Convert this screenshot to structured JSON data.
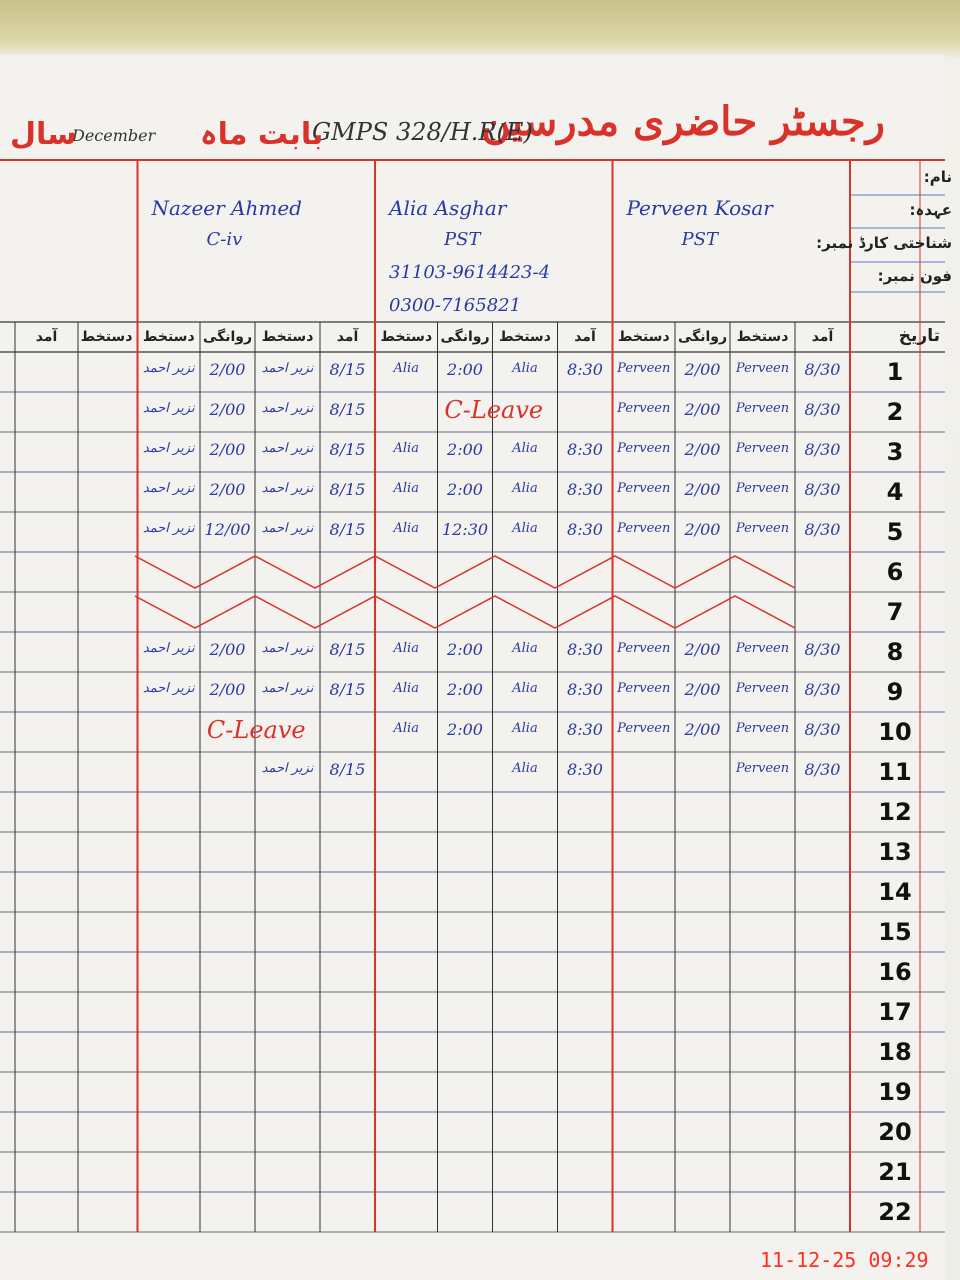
{
  "header": {
    "title": "رجسٹر حاضری مدرسین",
    "school": "GMPS 328/H.R(E)",
    "month_label": "بابت ماہ",
    "month": "December",
    "year_label": "سال"
  },
  "field_labels": [
    "نام:",
    "عہدہ:",
    "شناختی کارڈ نمبر:",
    "فون نمبر:"
  ],
  "date_label": "تاریخ",
  "teachers": [
    {
      "name": "Nazeer Ahmed",
      "designation": "C-iv"
    },
    {
      "name": "Alia Asghar",
      "designation": "PST",
      "cnic": "31103-9614423-4",
      "phone": "0300-7165821"
    },
    {
      "name": "Perveen Kosar",
      "designation": "PST"
    }
  ],
  "column_headers": [
    "آمد",
    "دستخط",
    "روانگی",
    "دستخط"
  ],
  "days": [
    1,
    2,
    3,
    4,
    5,
    6,
    7,
    8,
    9,
    10,
    11,
    12,
    13,
    14,
    15,
    16,
    17,
    18,
    19,
    20,
    21,
    22
  ],
  "crossed_days": [
    6,
    7
  ],
  "records": [
    {
      "day": 1,
      "teacher": 0,
      "cells": [
        "8/15",
        "نزیر احمد",
        "2/00",
        "نزیر احمد"
      ]
    },
    {
      "day": 1,
      "teacher": 1,
      "cells": [
        "8:30",
        "Alia",
        "2:00",
        "Alia"
      ]
    },
    {
      "day": 1,
      "teacher": 2,
      "cells": [
        "8/30",
        "Perveen",
        "2/00",
        "Perveen"
      ]
    },
    {
      "day": 2,
      "teacher": 0,
      "cells": [
        "8/15",
        "نزیر احمد",
        "2/00",
        "نزیر احمد"
      ]
    },
    {
      "day": 2,
      "teacher": 1,
      "leave": "C-Leave"
    },
    {
      "day": 2,
      "teacher": 2,
      "cells": [
        "8/30",
        "Perveen",
        "2/00",
        "Perveen"
      ]
    },
    {
      "day": 3,
      "teacher": 0,
      "cells": [
        "8/15",
        "نزیر احمد",
        "2/00",
        "نزیر احمد"
      ]
    },
    {
      "day": 3,
      "teacher": 1,
      "cells": [
        "8:30",
        "Alia",
        "2:00",
        "Alia"
      ]
    },
    {
      "day": 3,
      "teacher": 2,
      "cells": [
        "8/30",
        "Perveen",
        "2/00",
        "Perveen"
      ]
    },
    {
      "day": 4,
      "teacher": 0,
      "cells": [
        "8/15",
        "نزیر احمد",
        "2/00",
        "نزیر احمد"
      ]
    },
    {
      "day": 4,
      "teacher": 1,
      "cells": [
        "8:30",
        "Alia",
        "2:00",
        "Alia"
      ]
    },
    {
      "day": 4,
      "teacher": 2,
      "cells": [
        "8/30",
        "Perveen",
        "2/00",
        "Perveen"
      ]
    },
    {
      "day": 5,
      "teacher": 0,
      "cells": [
        "8/15",
        "نزیر احمد",
        "12/00",
        "نزیر احمد"
      ]
    },
    {
      "day": 5,
      "teacher": 1,
      "cells": [
        "8:30",
        "Alia",
        "12:30",
        "Alia"
      ]
    },
    {
      "day": 5,
      "teacher": 2,
      "cells": [
        "8/30",
        "Perveen",
        "2/00",
        "Perveen"
      ]
    },
    {
      "day": 8,
      "teacher": 0,
      "cells": [
        "8/15",
        "نزیر احمد",
        "2/00",
        "نزیر احمد"
      ]
    },
    {
      "day": 8,
      "teacher": 1,
      "cells": [
        "8:30",
        "Alia",
        "2:00",
        "Alia"
      ]
    },
    {
      "day": 8,
      "teacher": 2,
      "cells": [
        "8/30",
        "Perveen",
        "2/00",
        "Perveen"
      ]
    },
    {
      "day": 9,
      "teacher": 0,
      "cells": [
        "8/15",
        "نزیر احمد",
        "2/00",
        "نزیر احمد"
      ]
    },
    {
      "day": 9,
      "teacher": 1,
      "cells": [
        "8:30",
        "Alia",
        "2:00",
        "Alia"
      ]
    },
    {
      "day": 9,
      "teacher": 2,
      "cells": [
        "8/30",
        "Perveen",
        "2/00",
        "Perveen"
      ]
    },
    {
      "day": 10,
      "teacher": 0,
      "leave": "C-Leave"
    },
    {
      "day": 10,
      "teacher": 1,
      "cells": [
        "8:30",
        "Alia",
        "2:00",
        "Alia"
      ]
    },
    {
      "day": 10,
      "teacher": 2,
      "cells": [
        "8/30",
        "Perveen",
        "2/00",
        "Perveen"
      ]
    },
    {
      "day": 11,
      "teacher": 0,
      "cells": [
        "8/15",
        "نزیر احمد"
      ]
    },
    {
      "day": 11,
      "teacher": 1,
      "cells": [
        "8:30",
        "Alia"
      ]
    },
    {
      "day": 11,
      "teacher": 2,
      "cells": [
        "8/30",
        "Perveen"
      ]
    }
  ],
  "timestamp": "11-12-25 09:29"
}
